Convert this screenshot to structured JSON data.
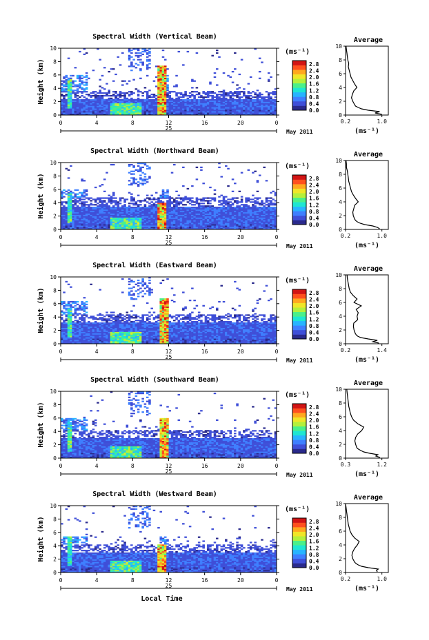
{
  "colors": {
    "scale": [
      "#2a2a8c",
      "#3f4fd8",
      "#3f7fff",
      "#28b4ff",
      "#1ee6d2",
      "#4af08a",
      "#b4f03c",
      "#f0e628",
      "#ffa81e",
      "#ff501e",
      "#d21414"
    ],
    "profile_line": "#000000",
    "background": "#ffffff"
  },
  "common": {
    "y_label": "Height (km)",
    "y_ticks": [
      "0",
      "2",
      "4",
      "6",
      "8",
      "10"
    ],
    "x_ticks": [
      "0",
      "4",
      "8",
      "12",
      "16",
      "20",
      "0"
    ],
    "date_day": "25",
    "date_month": "May 2011",
    "unit": "(ms⁻¹)",
    "colorbar_ticks": [
      "0.0",
      "0.4",
      "0.8",
      "1.2",
      "1.6",
      "2.0",
      "2.4",
      "2.8"
    ],
    "avg_title": "Average",
    "avg_y_ticks": [
      "0",
      "2",
      "4",
      "6",
      "8",
      "10"
    ],
    "avg_unit": "(ms⁻¹)",
    "x_label": "Local Time"
  },
  "chart_data": [
    {
      "type": "heatmap",
      "title": "Spectral Width (Vertical Beam)",
      "xlim": [
        0,
        24
      ],
      "ylim": [
        0,
        10
      ],
      "clim": [
        0,
        2.8
      ],
      "features": {
        "dense_top": 2.5,
        "mid_cloud_top": 6.0,
        "spike_hour": 11.3,
        "spike_top": 7.5
      },
      "profile": {
        "xlim": [
          0.2,
          1.0
        ],
        "xticks": [
          "0.2",
          "1.0"
        ],
        "height": [
          0.1,
          0.3,
          0.5,
          0.7,
          0.9,
          1.1,
          1.3,
          1.5,
          2.0,
          2.5,
          3.0,
          3.5,
          4.0,
          4.5,
          5.0,
          5.5,
          6.0,
          6.5,
          7.0,
          7.5,
          8.0,
          8.5,
          9.0,
          9.5,
          10.0
        ],
        "value": [
          1.0,
          0.85,
          0.95,
          0.7,
          0.55,
          0.48,
          0.42,
          0.4,
          0.36,
          0.33,
          0.35,
          0.38,
          0.45,
          0.4,
          0.36,
          0.32,
          0.3,
          0.28,
          0.26,
          0.27,
          0.25,
          0.24,
          0.23,
          0.22,
          0.21
        ]
      }
    },
    {
      "type": "heatmap",
      "title": "Spectral Width (Northward Beam)",
      "xlim": [
        0,
        24
      ],
      "ylim": [
        0,
        10
      ],
      "clim": [
        0,
        2.8
      ],
      "features": {
        "dense_top": 3.5,
        "mid_cloud_top": 6.0,
        "spike_hour": 11.3,
        "spike_top": 4.0
      },
      "profile": {
        "xlim": [
          0.2,
          1.0
        ],
        "xticks": [
          "0.2",
          "1.0"
        ],
        "height": [
          0.1,
          0.3,
          0.5,
          0.7,
          0.9,
          1.1,
          1.3,
          1.5,
          2.0,
          2.5,
          3.0,
          3.5,
          4.0,
          4.5,
          5.0,
          5.5,
          6.0,
          6.5,
          7.0,
          7.5,
          8.0,
          8.5,
          9.0,
          9.5,
          10.0
        ],
        "value": [
          0.95,
          0.9,
          0.8,
          0.62,
          0.52,
          0.46,
          0.42,
          0.4,
          0.37,
          0.36,
          0.38,
          0.4,
          0.48,
          0.42,
          0.37,
          0.33,
          0.31,
          0.29,
          0.27,
          0.26,
          0.25,
          0.24,
          0.22,
          0.22,
          0.21
        ]
      }
    },
    {
      "type": "heatmap",
      "title": "Spectral Width (Eastward Beam)",
      "xlim": [
        0,
        24
      ],
      "ylim": [
        0,
        10
      ],
      "clim": [
        0,
        2.8
      ],
      "features": {
        "dense_top": 3.3,
        "mid_cloud_top": 6.5,
        "spike_hour": 11.5,
        "spike_top": 6.8
      },
      "profile": {
        "xlim": [
          0.2,
          1.4
        ],
        "xticks": [
          "0.2",
          "1.4"
        ],
        "height": [
          0.1,
          0.3,
          0.5,
          0.7,
          0.9,
          1.1,
          1.3,
          1.5,
          2.0,
          2.5,
          3.0,
          3.5,
          4.0,
          4.5,
          5.0,
          5.5,
          6.0,
          6.5,
          7.0,
          7.5,
          8.0,
          8.5,
          9.0,
          9.5,
          10.0
        ],
        "value": [
          1.3,
          1.1,
          1.25,
          0.95,
          0.7,
          0.6,
          0.55,
          0.52,
          0.48,
          0.46,
          0.47,
          0.6,
          0.58,
          0.62,
          0.55,
          0.72,
          0.48,
          0.58,
          0.45,
          0.36,
          0.32,
          0.3,
          0.28,
          0.26,
          0.25
        ]
      }
    },
    {
      "type": "heatmap",
      "title": "Spectral Width (Southward Beam)",
      "xlim": [
        0,
        24
      ],
      "ylim": [
        0,
        10
      ],
      "clim": [
        0,
        2.8
      ],
      "features": {
        "dense_top": 3.0,
        "mid_cloud_top": 6.0,
        "spike_hour": 11.5,
        "spike_top": 6.0
      },
      "profile": {
        "xlim": [
          0.3,
          1.2
        ],
        "xticks": [
          "0.3",
          "1.2"
        ],
        "height": [
          0.1,
          0.3,
          0.5,
          0.7,
          0.9,
          1.1,
          1.3,
          1.5,
          2.0,
          2.5,
          3.0,
          3.5,
          4.0,
          4.5,
          5.0,
          5.5,
          6.0,
          6.5,
          7.0,
          7.5,
          8.0,
          8.5,
          9.0,
          9.5,
          10.0
        ],
        "value": [
          1.15,
          1.05,
          1.1,
          0.9,
          0.75,
          0.68,
          0.62,
          0.58,
          0.55,
          0.53,
          0.55,
          0.6,
          0.7,
          0.75,
          0.6,
          0.5,
          0.45,
          0.42,
          0.4,
          0.38,
          0.37,
          0.36,
          0.35,
          0.34,
          0.33
        ]
      }
    },
    {
      "type": "heatmap",
      "title": "Spectral Width (Westward Beam)",
      "xlim": [
        0,
        24
      ],
      "ylim": [
        0,
        10
      ],
      "clim": [
        0,
        2.8
      ],
      "features": {
        "dense_top": 3.0,
        "mid_cloud_top": 5.5,
        "spike_hour": 11.2,
        "spike_top": 4.2
      },
      "profile": {
        "xlim": [
          0.2,
          1.0
        ],
        "xticks": [
          "0.2",
          "1.0"
        ],
        "height": [
          0.1,
          0.3,
          0.5,
          0.7,
          0.9,
          1.1,
          1.3,
          1.5,
          2.0,
          2.5,
          3.0,
          3.5,
          4.0,
          4.5,
          5.0,
          5.5,
          6.0,
          6.5,
          7.0,
          7.5,
          8.0,
          8.5,
          9.0,
          9.5,
          10.0
        ],
        "value": [
          0.9,
          0.88,
          0.92,
          0.7,
          0.55,
          0.48,
          0.43,
          0.4,
          0.36,
          0.34,
          0.36,
          0.4,
          0.46,
          0.5,
          0.4,
          0.34,
          0.3,
          0.28,
          0.26,
          0.25,
          0.24,
          0.23,
          0.22,
          0.21,
          0.2
        ]
      }
    }
  ]
}
